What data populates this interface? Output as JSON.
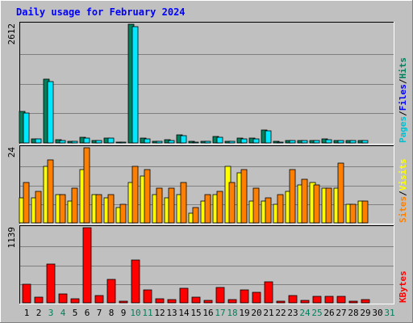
{
  "title": "Daily usage for February 2024",
  "colors": {
    "background": "#c0c0c0",
    "plot_bg": "#c0c0c0",
    "grid": "#808080",
    "hits": "#00805c",
    "files": "#00e8ff",
    "pages": "#00c0d0",
    "visits": "#ffff00",
    "sites": "#ff8000",
    "kbytes": "#ff0000",
    "title": "#0000ff",
    "weekend": "#00805c",
    "weekday": "#000000"
  },
  "chart_data": [
    {
      "type": "bar",
      "panel": "hits-files-pages",
      "title": "Daily usage for February 2024",
      "ymax_label": "2612",
      "ylim": [
        0,
        2612
      ],
      "legend": [
        "Pages",
        "/",
        "Files",
        "/",
        "Hits"
      ],
      "categories": [
        "1",
        "2",
        "3",
        "4",
        "5",
        "6",
        "7",
        "8",
        "9",
        "10",
        "11",
        "12",
        "13",
        "14",
        "15",
        "16",
        "17",
        "18",
        "19",
        "20",
        "21",
        "22",
        "23",
        "24",
        "25",
        "26",
        "27",
        "28",
        "29",
        "30",
        "31"
      ],
      "series": [
        {
          "name": "Hits",
          "values": [
            700,
            90,
            1400,
            70,
            40,
            130,
            60,
            110,
            20,
            2612,
            100,
            40,
            70,
            170,
            30,
            30,
            140,
            40,
            100,
            100,
            280,
            30,
            60,
            50,
            60,
            80,
            60,
            50,
            60,
            0,
            0
          ]
        },
        {
          "name": "Files",
          "values": [
            650,
            85,
            1350,
            60,
            35,
            110,
            50,
            100,
            15,
            2550,
            90,
            35,
            60,
            165,
            25,
            28,
            120,
            35,
            90,
            90,
            270,
            25,
            50,
            45,
            55,
            70,
            55,
            45,
            55,
            0,
            0
          ]
        },
        {
          "name": "Pages",
          "values": [
            0,
            0,
            0,
            0,
            0,
            0,
            0,
            0,
            0,
            0,
            0,
            0,
            0,
            0,
            0,
            0,
            0,
            0,
            0,
            0,
            0,
            0,
            0,
            0,
            0,
            0,
            0,
            0,
            0,
            0,
            0
          ]
        }
      ]
    },
    {
      "type": "bar",
      "panel": "sites-visits",
      "ymax_label": "24",
      "ylim": [
        0,
        24
      ],
      "legend": [
        "Sites",
        "/",
        "Visits"
      ],
      "categories": [
        "1",
        "2",
        "3",
        "4",
        "5",
        "6",
        "7",
        "8",
        "9",
        "10",
        "11",
        "12",
        "13",
        "14",
        "15",
        "16",
        "17",
        "18",
        "19",
        "20",
        "21",
        "22",
        "23",
        "24",
        "25",
        "26",
        "27",
        "28",
        "29",
        "30",
        "31"
      ],
      "series": [
        {
          "name": "Visits",
          "values": [
            8,
            8,
            18,
            9,
            7,
            17,
            9,
            8,
            5,
            13,
            15,
            9,
            8,
            9,
            3,
            7,
            9,
            18,
            16,
            7,
            7,
            6,
            10,
            12,
            13,
            11,
            11,
            6,
            7,
            0,
            0
          ]
        },
        {
          "name": "Sites",
          "values": [
            13,
            10,
            20,
            9,
            11,
            24,
            9,
            9,
            6,
            18,
            17,
            11,
            11,
            13,
            5,
            9,
            10,
            13,
            17,
            11,
            8,
            9,
            17,
            14,
            12,
            11,
            19,
            6,
            7,
            0,
            0
          ]
        }
      ]
    },
    {
      "type": "bar",
      "panel": "kbytes",
      "ymax_label": "1139",
      "ylim": [
        0,
        1139
      ],
      "legend": [
        "KBytes"
      ],
      "categories": [
        "1",
        "2",
        "3",
        "4",
        "5",
        "6",
        "7",
        "8",
        "9",
        "10",
        "11",
        "12",
        "13",
        "14",
        "15",
        "16",
        "17",
        "18",
        "19",
        "20",
        "21",
        "22",
        "23",
        "24",
        "25",
        "26",
        "27",
        "28",
        "29",
        "30",
        "31"
      ],
      "series": [
        {
          "name": "KBytes",
          "values": [
            280,
            80,
            590,
            130,
            60,
            1139,
            110,
            360,
            20,
            650,
            200,
            60,
            50,
            220,
            80,
            40,
            230,
            50,
            200,
            160,
            320,
            30,
            110,
            40,
            100,
            100,
            100,
            30,
            50,
            0,
            0
          ]
        }
      ]
    }
  ],
  "x_labels": [
    {
      "text": "1",
      "weekend": false
    },
    {
      "text": "2",
      "weekend": false
    },
    {
      "text": "3",
      "weekend": true
    },
    {
      "text": "4",
      "weekend": true
    },
    {
      "text": "5",
      "weekend": false
    },
    {
      "text": "6",
      "weekend": false
    },
    {
      "text": "7",
      "weekend": false
    },
    {
      "text": "8",
      "weekend": false
    },
    {
      "text": "9",
      "weekend": false
    },
    {
      "text": "10",
      "weekend": true
    },
    {
      "text": "11",
      "weekend": true
    },
    {
      "text": "12",
      "weekend": false
    },
    {
      "text": "13",
      "weekend": false
    },
    {
      "text": "14",
      "weekend": false
    },
    {
      "text": "15",
      "weekend": false
    },
    {
      "text": "16",
      "weekend": false
    },
    {
      "text": "17",
      "weekend": true
    },
    {
      "text": "18",
      "weekend": true
    },
    {
      "text": "19",
      "weekend": false
    },
    {
      "text": "20",
      "weekend": false
    },
    {
      "text": "21",
      "weekend": false
    },
    {
      "text": "22",
      "weekend": false
    },
    {
      "text": "23",
      "weekend": false
    },
    {
      "text": "24",
      "weekend": true
    },
    {
      "text": "25",
      "weekend": true
    },
    {
      "text": "26",
      "weekend": false
    },
    {
      "text": "27",
      "weekend": false
    },
    {
      "text": "28",
      "weekend": false
    },
    {
      "text": "29",
      "weekend": false
    },
    {
      "text": "30",
      "weekend": false
    },
    {
      "text": "31",
      "weekend": true
    }
  ]
}
